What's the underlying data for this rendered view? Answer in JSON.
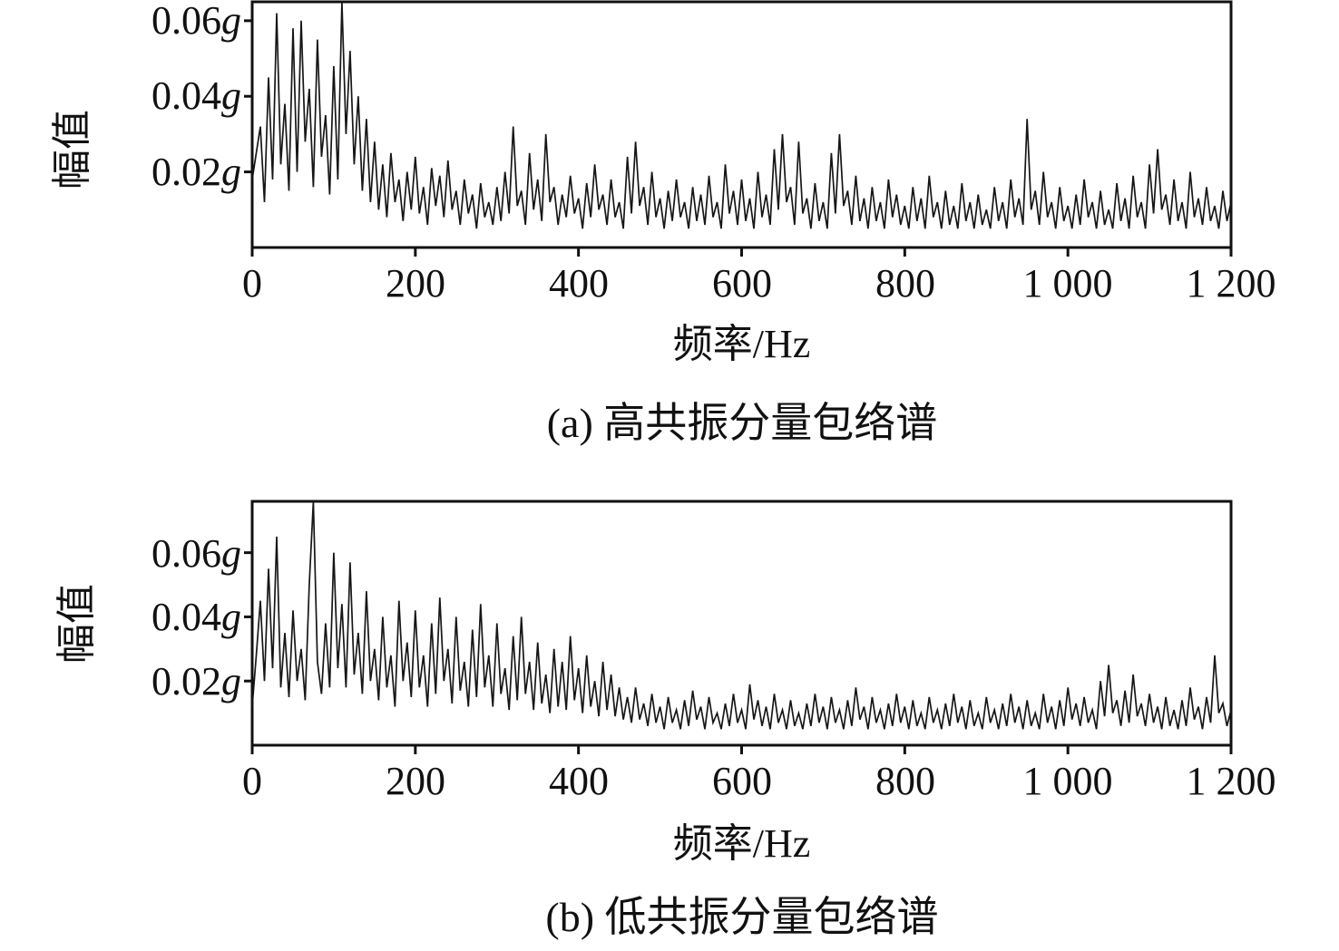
{
  "figure": {
    "background": "#ffffff",
    "line_color": "#161616",
    "axis_color": "#111111",
    "y_unit": "g"
  },
  "chart_data": [
    {
      "id": "a",
      "type": "line",
      "title": "(a) 高共振分量包络谱",
      "xlabel": "频率/Hz",
      "ylabel": "幅值",
      "legend": null,
      "grid": false,
      "xlim": [
        0,
        1200
      ],
      "ylim": [
        0,
        0.065
      ],
      "x_step": 5,
      "unit_scale": 0.001,
      "x_ticks": [
        "0",
        "200",
        "400",
        "600",
        "800",
        "1 000",
        "1 200"
      ],
      "x_tick_values": [
        0,
        200,
        400,
        600,
        800,
        1000,
        1200
      ],
      "y_tick_texts": [
        "0.02",
        "0.04",
        "0.06"
      ],
      "y_tick_values": [
        0.02,
        0.04,
        0.06
      ],
      "values_milli_g": [
        18,
        25,
        32,
        12,
        45,
        18,
        62,
        22,
        38,
        15,
        58,
        20,
        60,
        28,
        42,
        16,
        55,
        24,
        35,
        14,
        48,
        18,
        65,
        30,
        52,
        22,
        40,
        15,
        34,
        12,
        28,
        10,
        22,
        8,
        25,
        12,
        18,
        7,
        20,
        10,
        24,
        9,
        16,
        6,
        21,
        11,
        19,
        8,
        23,
        10,
        15,
        6,
        18,
        9,
        14,
        5,
        17,
        8,
        12,
        6,
        16,
        7,
        20,
        9,
        32,
        11,
        15,
        6,
        25,
        10,
        18,
        7,
        30,
        12,
        16,
        6,
        14,
        8,
        19,
        9,
        13,
        5,
        17,
        8,
        22,
        10,
        14,
        6,
        18,
        8,
        12,
        5,
        24,
        9,
        28,
        11,
        16,
        6,
        20,
        8,
        13,
        5,
        15,
        7,
        18,
        8,
        12,
        5,
        16,
        7,
        14,
        6,
        19,
        8,
        12,
        5,
        22,
        9,
        15,
        6,
        18,
        7,
        13,
        5,
        20,
        8,
        14,
        6,
        26,
        10,
        30,
        12,
        16,
        6,
        28,
        9,
        13,
        5,
        17,
        7,
        12,
        5,
        25,
        9,
        30,
        11,
        15,
        6,
        19,
        7,
        13,
        5,
        16,
        7,
        12,
        5,
        18,
        8,
        14,
        6,
        11,
        5,
        16,
        7,
        13,
        5,
        19,
        8,
        12,
        5,
        15,
        6,
        11,
        5,
        17,
        7,
        12,
        5,
        14,
        6,
        10,
        5,
        16,
        7,
        12,
        5,
        18,
        8,
        13,
        6,
        34,
        10,
        15,
        6,
        20,
        8,
        12,
        5,
        16,
        7,
        11,
        5,
        14,
        6,
        18,
        8,
        12,
        5,
        15,
        6,
        10,
        5,
        17,
        7,
        13,
        5,
        19,
        8,
        12,
        5,
        22,
        9,
        26,
        10,
        14,
        6,
        18,
        7,
        12,
        5,
        20,
        8,
        13,
        6,
        16,
        7,
        11,
        5,
        15,
        7,
        12
      ]
    },
    {
      "id": "b",
      "type": "line",
      "title": "(b) 低共振分量包络谱",
      "xlabel": "频率/Hz",
      "ylabel": "幅值",
      "legend": null,
      "grid": false,
      "xlim": [
        0,
        1200
      ],
      "ylim": [
        0,
        0.076
      ],
      "x_step": 5,
      "unit_scale": 0.001,
      "x_ticks": [
        "0",
        "200",
        "400",
        "600",
        "800",
        "1 000",
        "1 200"
      ],
      "x_tick_values": [
        0,
        200,
        400,
        600,
        800,
        1000,
        1200
      ],
      "y_tick_texts": [
        "0.02",
        "0.04",
        "0.06"
      ],
      "y_tick_values": [
        0.02,
        0.04,
        0.06
      ],
      "values_milli_g": [
        12,
        28,
        45,
        20,
        55,
        24,
        65,
        18,
        35,
        15,
        42,
        20,
        30,
        14,
        50,
        76,
        26,
        16,
        38,
        18,
        60,
        24,
        44,
        18,
        57,
        22,
        35,
        16,
        48,
        20,
        30,
        14,
        40,
        18,
        28,
        12,
        45,
        20,
        32,
        15,
        42,
        18,
        28,
        12,
        38,
        16,
        46,
        20,
        30,
        13,
        40,
        17,
        26,
        12,
        36,
        15,
        44,
        18,
        28,
        12,
        38,
        16,
        24,
        11,
        34,
        14,
        40,
        16,
        26,
        11,
        32,
        13,
        22,
        10,
        30,
        12,
        26,
        11,
        34,
        14,
        24,
        10,
        28,
        12,
        20,
        9,
        26,
        11,
        22,
        9,
        18,
        8,
        15,
        7,
        18,
        8,
        13,
        6,
        16,
        7,
        12,
        5,
        15,
        7,
        11,
        5,
        14,
        6,
        17,
        8,
        12,
        5,
        15,
        7,
        10,
        5,
        13,
        6,
        16,
        7,
        11,
        5,
        19,
        8,
        14,
        6,
        12,
        5,
        16,
        7,
        11,
        5,
        14,
        6,
        10,
        5,
        13,
        6,
        16,
        7,
        12,
        5,
        15,
        7,
        11,
        5,
        14,
        6,
        18,
        8,
        12,
        5,
        15,
        7,
        11,
        5,
        13,
        6,
        16,
        7,
        12,
        5,
        14,
        6,
        10,
        5,
        15,
        7,
        11,
        5,
        13,
        6,
        16,
        7,
        12,
        5,
        14,
        6,
        10,
        5,
        15,
        7,
        11,
        5,
        13,
        6,
        16,
        7,
        12,
        5,
        14,
        6,
        10,
        5,
        16,
        7,
        12,
        5,
        14,
        6,
        18,
        8,
        13,
        6,
        15,
        7,
        11,
        5,
        20,
        9,
        25,
        10,
        14,
        6,
        17,
        7,
        22,
        9,
        13,
        6,
        16,
        7,
        12,
        5,
        15,
        6,
        11,
        5,
        14,
        6,
        18,
        8,
        12,
        5,
        15,
        7,
        28,
        10,
        13,
        6,
        11
      ]
    }
  ]
}
